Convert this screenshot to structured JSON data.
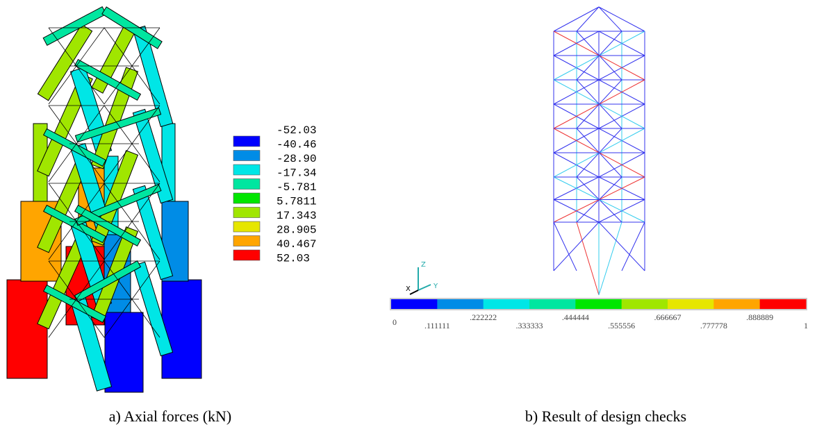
{
  "panels": [
    {
      "caption": "a) Axial forces (kN)",
      "legend": [
        {
          "label": "-52.03",
          "color": "#0000ff"
        },
        {
          "label": "-40.46",
          "color": "#008ce6"
        },
        {
          "label": "-28.90",
          "color": "#00e6e6"
        },
        {
          "label": "-17.34",
          "color": "#00e6a0"
        },
        {
          "label": "-5.781",
          "color": "#00e600"
        },
        {
          "label": "5.7811",
          "color": "#a0e600"
        },
        {
          "label": "17.343",
          "color": "#e6e600"
        },
        {
          "label": "28.905",
          "color": "#ffa500"
        },
        {
          "label": "40.467",
          "color": "#ff0000"
        },
        {
          "label": "52.03"
        }
      ]
    },
    {
      "caption": "b) Result of design checks",
      "colorbar": {
        "colors": [
          "#0000ff",
          "#008ce6",
          "#00e6e6",
          "#00e6a0",
          "#00e600",
          "#a0e600",
          "#e6e600",
          "#ffa500",
          "#ff0000"
        ],
        "labels": [
          "0",
          ".111111",
          ".222222",
          ".333333",
          ".444444",
          ".555556",
          ".666667",
          ".777778",
          ".888889",
          "1"
        ]
      },
      "axes": {
        "z": "Z",
        "y": "Y",
        "x": "X"
      }
    }
  ]
}
